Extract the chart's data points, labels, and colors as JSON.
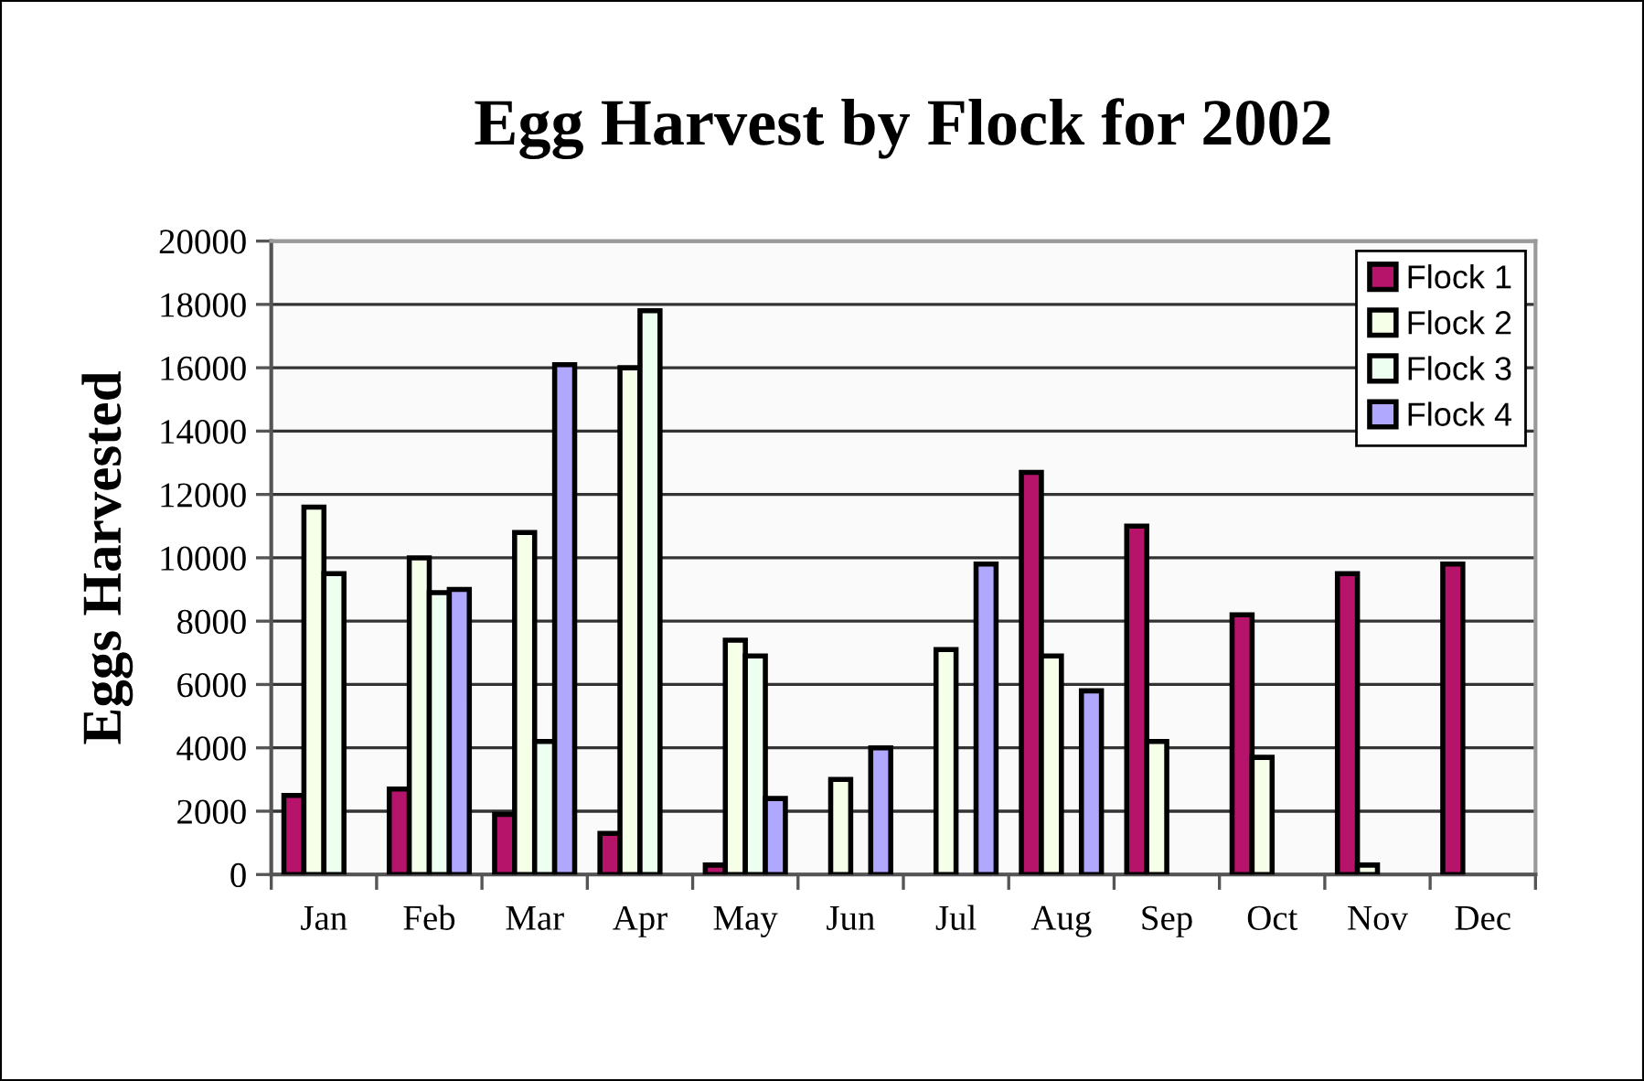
{
  "chart_data": {
    "type": "bar",
    "title": "Egg Harvest by Flock for 2002",
    "ylabel": "Eggs Harvested",
    "categories": [
      "Jan",
      "Feb",
      "Mar",
      "Apr",
      "May",
      "Jun",
      "Jul",
      "Aug",
      "Sep",
      "Oct",
      "Nov",
      "Dec"
    ],
    "series": [
      {
        "name": "Flock 1",
        "color": "#b5146a",
        "values": [
          2500,
          2700,
          1900,
          1300,
          300,
          null,
          null,
          12700,
          11000,
          8200,
          9500,
          9800
        ]
      },
      {
        "name": "Flock 2",
        "color": "#f6ffe8",
        "values": [
          11600,
          10000,
          10800,
          16000,
          7400,
          3000,
          7100,
          6900,
          4200,
          3700,
          300,
          null
        ]
      },
      {
        "name": "Flock 3",
        "color": "#ecfff0",
        "values": [
          9500,
          8900,
          4200,
          17800,
          6900,
          null,
          null,
          null,
          null,
          null,
          null,
          null
        ]
      },
      {
        "name": "Flock 4",
        "color": "#b0a8ff",
        "values": [
          null,
          9000,
          16100,
          null,
          2400,
          4000,
          9800,
          5800,
          null,
          null,
          null,
          null
        ]
      }
    ],
    "ylim": [
      0,
      20000
    ],
    "yticks": [
      0,
      2000,
      4000,
      6000,
      8000,
      10000,
      12000,
      14000,
      16000,
      18000,
      20000
    ],
    "grid": "y",
    "legend": "top right"
  }
}
